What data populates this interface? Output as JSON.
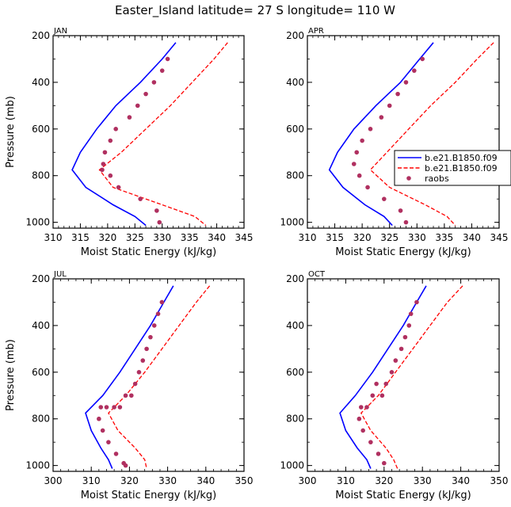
{
  "title": "Easter_Island   latitude= 27 S longitude= 110 W",
  "legend": {
    "entries": [
      {
        "label": "b.e21.B1850.f09",
        "color": "#0000ff",
        "style": "solid"
      },
      {
        "label": "b.e21.B1850.f09",
        "color": "#ff0000",
        "style": "dashed"
      },
      {
        "label": "raobs",
        "color": "#b03060",
        "style": "dot"
      }
    ]
  },
  "chart_data": [
    {
      "type": "line",
      "panel_label": "JAN",
      "xlabel": "Moist Static Energy (kJ/kg)",
      "ylabel": "Pressure (mb)",
      "xlim": [
        310,
        345
      ],
      "ylim": [
        1025,
        200
      ],
      "xticks": [
        310,
        315,
        320,
        325,
        330,
        335,
        340,
        345
      ],
      "yticks": [
        200,
        400,
        600,
        800,
        1000
      ],
      "series": [
        {
          "name": "b.e21.B1850.f09",
          "color": "#0000ff",
          "style": "solid",
          "x": [
            332.5,
            330.0,
            326.0,
            321.5,
            318.0,
            315.0,
            313.5,
            316.0,
            321.0,
            325.0,
            327.0
          ],
          "y": [
            230,
            300,
            400,
            500,
            600,
            700,
            775,
            850,
            925,
            975,
            1013
          ]
        },
        {
          "name": "b.e21.B1850.f09",
          "color": "#ff0000",
          "style": "dashed",
          "x": [
            342.0,
            339.5,
            335.5,
            331.5,
            327.0,
            322.5,
            318.5,
            321.0,
            330.0,
            336.0,
            338.0
          ],
          "y": [
            230,
            300,
            400,
            500,
            600,
            700,
            775,
            850,
            925,
            975,
            1013
          ]
        },
        {
          "name": "raobs",
          "color": "#b03060",
          "style": "dot",
          "x": [
            331.0,
            330.0,
            328.5,
            327.0,
            325.5,
            324.0,
            321.5,
            320.5,
            319.5,
            319.2,
            319.0,
            320.5,
            322.0,
            326.0,
            329.0,
            329.5
          ],
          "y": [
            300,
            350,
            400,
            450,
            500,
            550,
            600,
            650,
            700,
            750,
            775,
            800,
            850,
            900,
            950,
            1000
          ]
        }
      ]
    },
    {
      "type": "line",
      "panel_label": "APR",
      "xlabel": "Moist Static Energy (kJ/kg)",
      "ylabel": "",
      "xlim": [
        310,
        345
      ],
      "ylim": [
        1025,
        200
      ],
      "xticks": [
        310,
        315,
        320,
        325,
        330,
        335,
        340,
        345
      ],
      "yticks": [
        200,
        400,
        600,
        800,
        1000
      ],
      "series": [
        {
          "name": "b.e21.B1850.f09",
          "color": "#0000ff",
          "style": "solid",
          "x": [
            333.0,
            330.5,
            327.0,
            322.5,
            318.5,
            315.5,
            314.0,
            316.5,
            320.5,
            324.0,
            325.5
          ],
          "y": [
            230,
            300,
            400,
            500,
            600,
            700,
            775,
            850,
            925,
            975,
            1013
          ]
        },
        {
          "name": "b.e21.B1850.f09",
          "color": "#ff0000",
          "style": "dashed",
          "x": [
            344.0,
            341.0,
            337.0,
            332.5,
            328.5,
            324.5,
            321.5,
            325.0,
            331.5,
            335.5,
            337.0
          ],
          "y": [
            230,
            300,
            400,
            500,
            600,
            700,
            775,
            850,
            925,
            975,
            1013
          ]
        },
        {
          "name": "raobs",
          "color": "#b03060",
          "style": "dot",
          "x": [
            331.0,
            329.5,
            328.0,
            326.5,
            325.0,
            323.5,
            321.5,
            320.0,
            319.0,
            318.5,
            319.5,
            321.0,
            324.0,
            327.0,
            328.0
          ],
          "y": [
            300,
            350,
            400,
            450,
            500,
            550,
            600,
            650,
            700,
            750,
            800,
            850,
            900,
            950,
            1000
          ]
        }
      ]
    },
    {
      "type": "line",
      "panel_label": "JUL",
      "xlabel": "Moist Static Energy (kJ/kg)",
      "ylabel": "Pressure (mb)",
      "xlim": [
        300,
        350
      ],
      "ylim": [
        1025,
        200
      ],
      "xticks": [
        300,
        310,
        320,
        330,
        340,
        350
      ],
      "yticks": [
        200,
        400,
        600,
        800,
        1000
      ],
      "series": [
        {
          "name": "b.e21.B1850.f09",
          "color": "#0000ff",
          "style": "solid",
          "x": [
            331.5,
            329.0,
            325.5,
            321.5,
            317.5,
            313.0,
            308.5,
            310.0,
            312.5,
            314.5,
            315.5
          ],
          "y": [
            230,
            300,
            400,
            500,
            600,
            700,
            775,
            850,
            925,
            975,
            1013
          ]
        },
        {
          "name": "b.e21.B1850.f09",
          "color": "#ff0000",
          "style": "dashed",
          "x": [
            341.0,
            337.5,
            333.0,
            328.5,
            324.0,
            319.0,
            314.5,
            317.0,
            321.5,
            324.0,
            324.5
          ],
          "y": [
            230,
            300,
            400,
            500,
            600,
            700,
            775,
            850,
            925,
            975,
            1013
          ]
        },
        {
          "name": "raobs",
          "color": "#b03060",
          "style": "dot",
          "x": [
            328.5,
            327.5,
            326.5,
            325.5,
            324.5,
            323.5,
            322.5,
            321.5,
            320.5,
            319.0,
            317.5,
            316.0,
            314.0,
            312.5,
            312.0,
            313.0,
            314.5,
            316.5,
            318.5,
            319.0
          ],
          "y": [
            300,
            350,
            400,
            450,
            500,
            550,
            600,
            650,
            700,
            700,
            750,
            750,
            750,
            750,
            800,
            850,
            900,
            950,
            990,
            1000
          ]
        }
      ]
    },
    {
      "type": "line",
      "panel_label": "OCT",
      "xlabel": "Moist Static Energy (kJ/kg)",
      "ylabel": "",
      "xlim": [
        300,
        350
      ],
      "ylim": [
        1025,
        200
      ],
      "xticks": [
        300,
        310,
        320,
        330,
        340,
        350
      ],
      "yticks": [
        200,
        400,
        600,
        800,
        1000
      ],
      "series": [
        {
          "name": "b.e21.B1850.f09",
          "color": "#0000ff",
          "style": "solid",
          "x": [
            331.0,
            328.5,
            325.0,
            321.0,
            317.0,
            312.5,
            308.5,
            310.0,
            313.0,
            315.5,
            316.5
          ],
          "y": [
            230,
            300,
            400,
            500,
            600,
            700,
            775,
            850,
            925,
            975,
            1013
          ]
        },
        {
          "name": "b.e21.B1850.f09",
          "color": "#ff0000",
          "style": "dashed",
          "x": [
            340.5,
            336.5,
            332.0,
            327.5,
            323.0,
            318.5,
            314.0,
            316.5,
            320.5,
            322.5,
            323.5
          ],
          "y": [
            230,
            300,
            400,
            500,
            600,
            700,
            775,
            850,
            925,
            975,
            1013
          ]
        },
        {
          "name": "raobs",
          "color": "#b03060",
          "style": "dot",
          "x": [
            328.5,
            327.0,
            326.5,
            325.5,
            324.5,
            323.0,
            322.0,
            320.5,
            319.5,
            318.0,
            317.0,
            315.5,
            314.0,
            313.5,
            314.5,
            316.5,
            318.5,
            320.0
          ],
          "y": [
            300,
            350,
            400,
            450,
            500,
            550,
            600,
            650,
            700,
            650,
            700,
            750,
            750,
            800,
            850,
            900,
            950,
            990
          ]
        }
      ]
    }
  ]
}
